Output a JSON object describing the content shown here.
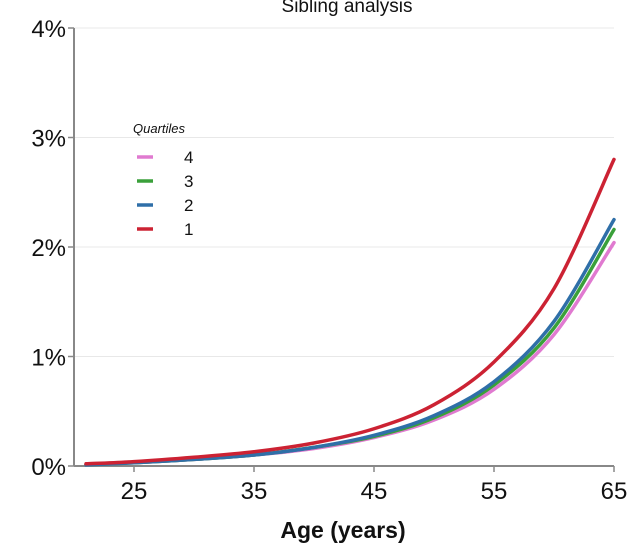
{
  "chart_data": {
    "type": "line",
    "title": "Sibling analysis",
    "xlabel": "Age (years)",
    "ylabel": "",
    "xlim": [
      20,
      65
    ],
    "ylim": [
      0,
      4
    ],
    "x_ticks": [
      25,
      35,
      45,
      55,
      65
    ],
    "y_ticks": [
      0,
      1,
      2,
      3,
      4
    ],
    "y_tick_labels": [
      "0%",
      "1%",
      "2%",
      "3%",
      "4%"
    ],
    "grid": true,
    "legend": {
      "title": "Quartiles",
      "placement": "top-left"
    },
    "x": [
      21,
      25,
      30,
      35,
      40,
      45,
      50,
      55,
      60,
      65
    ],
    "series": [
      {
        "name": "4",
        "color": "#e07ad0",
        "values": [
          0.01,
          0.03,
          0.06,
          0.1,
          0.16,
          0.26,
          0.42,
          0.7,
          1.2,
          2.04
        ]
      },
      {
        "name": "3",
        "color": "#3aa03a",
        "values": [
          0.01,
          0.03,
          0.06,
          0.1,
          0.17,
          0.27,
          0.44,
          0.74,
          1.26,
          2.16
        ]
      },
      {
        "name": "2",
        "color": "#2f6fa8",
        "values": [
          0.01,
          0.03,
          0.06,
          0.1,
          0.17,
          0.28,
          0.46,
          0.77,
          1.32,
          2.25
        ]
      },
      {
        "name": "1",
        "color": "#cc2233",
        "values": [
          0.02,
          0.04,
          0.08,
          0.13,
          0.21,
          0.34,
          0.56,
          0.95,
          1.62,
          2.8
        ]
      }
    ]
  }
}
